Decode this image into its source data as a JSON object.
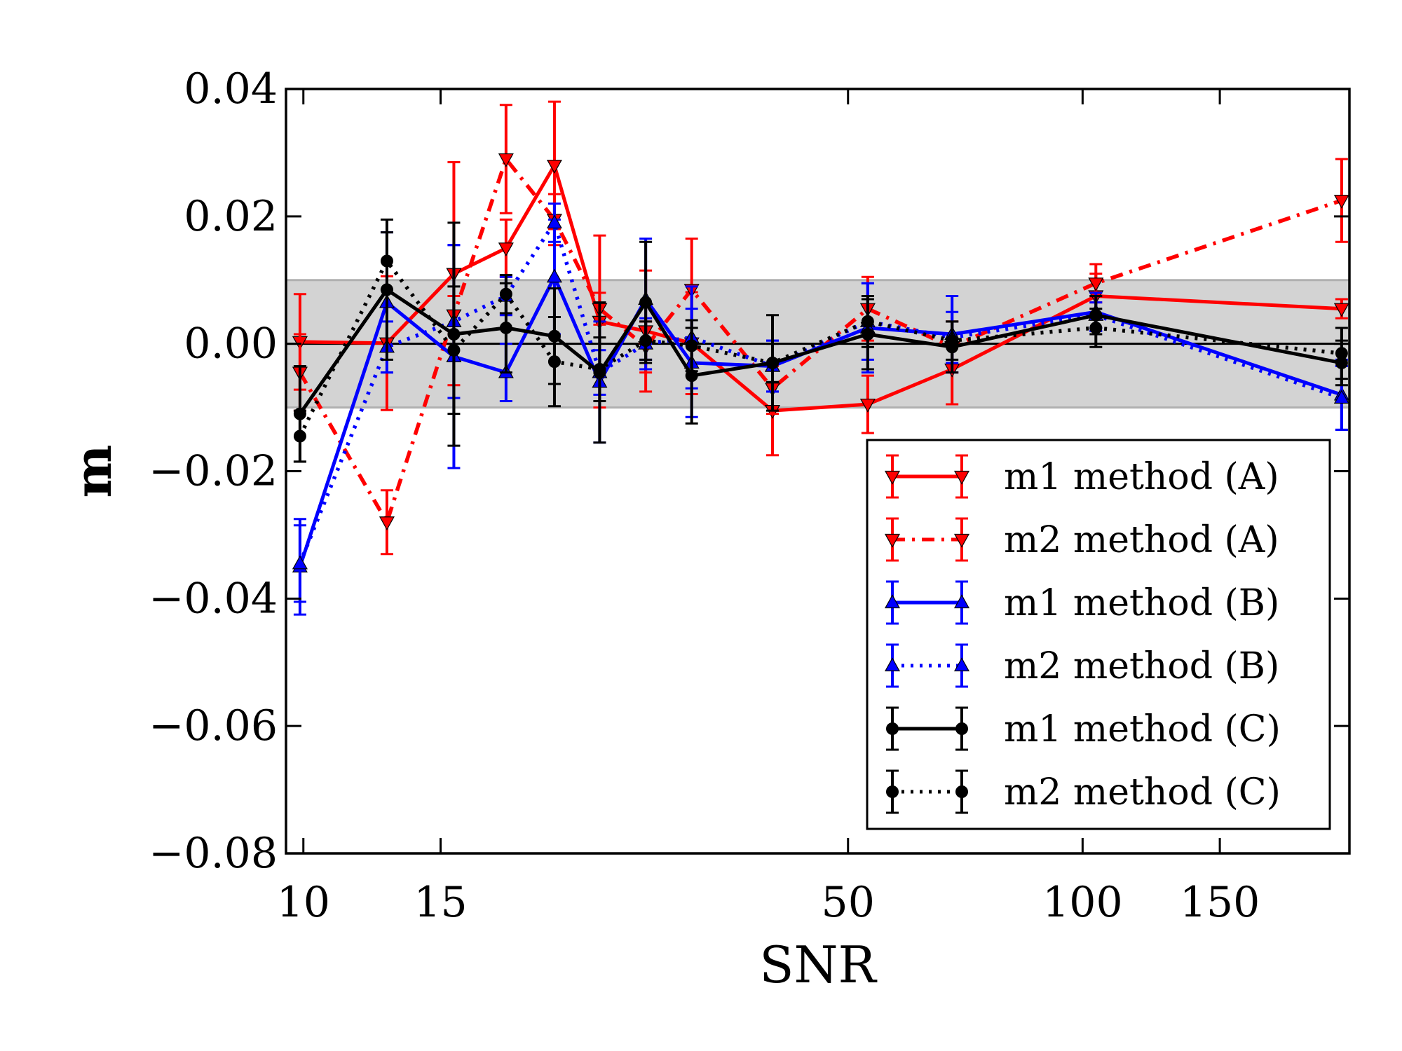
{
  "chart_data": {
    "type": "line",
    "title": "",
    "xlabel": "SNR",
    "ylabel": "m",
    "x_scale": "log",
    "xlim": [
      9.5,
      220
    ],
    "ylim": [
      -0.08,
      0.04
    ],
    "x_ticks": [
      10,
      15,
      50,
      100,
      150
    ],
    "x_tick_labels": [
      "10",
      "15",
      "50",
      "100",
      "150"
    ],
    "y_ticks": [
      -0.08,
      -0.06,
      -0.04,
      -0.02,
      0.0,
      0.02,
      0.04
    ],
    "y_tick_labels": [
      "−0.08",
      "−0.06",
      "−0.04",
      "−0.02",
      "0.00",
      "0.02",
      "0.04"
    ],
    "shaded_band": [
      -0.01,
      0.01
    ],
    "reference_line": 0.0,
    "legend_position": "lower-right",
    "series": [
      {
        "name": "m1 method (A)",
        "color": "#ff0000",
        "style": "solid",
        "marker": "triangle-down",
        "x": [
          9.9,
          12.8,
          15.6,
          18.2,
          21.0,
          24.0,
          27.5,
          31.5,
          40.0,
          53.0,
          68.0,
          104.0,
          215.0
        ],
        "y": [
          0.0003,
          0.0001,
          0.011,
          0.015,
          0.028,
          0.0035,
          0.002,
          0.0001,
          -0.0105,
          -0.0095,
          -0.004,
          0.0075,
          0.0055
        ],
        "err": [
          0.0075,
          0.0105,
          0.0175,
          0.0045,
          0.01,
          0.0135,
          0.0095,
          0.008,
          0.007,
          0.0045,
          0.0055,
          0.0035,
          0.0015
        ]
      },
      {
        "name": "m2 method (A)",
        "color": "#ff0000",
        "style": "dashdot",
        "marker": "triangle-down",
        "x": [
          9.9,
          12.8,
          15.6,
          18.2,
          21.0,
          24.0,
          27.5,
          31.5,
          40.0,
          53.0,
          68.0,
          104.0,
          215.0
        ],
        "y": [
          -0.0045,
          -0.028,
          0.0045,
          0.029,
          0.0195,
          0.0055,
          -0.0005,
          0.0085,
          -0.007,
          0.0055,
          -0.0005,
          0.0095,
          0.0225
        ],
        "err": [
          0.006,
          0.005,
          0.003,
          0.0085,
          0.004,
          0.0025,
          0.004,
          0.008,
          0.004,
          0.005,
          0.004,
          0.003,
          0.0065
        ]
      },
      {
        "name": "m1 method (B)",
        "color": "#0000ff",
        "style": "solid",
        "marker": "triangle-up",
        "x": [
          9.9,
          12.8,
          15.6,
          18.2,
          21.0,
          24.0,
          27.5,
          31.5,
          40.0,
          53.0,
          68.0,
          104.0,
          215.0
        ],
        "y": [
          -0.035,
          0.0065,
          -0.002,
          -0.0045,
          0.0105,
          -0.006,
          0.007,
          -0.003,
          -0.0035,
          0.0025,
          0.0015,
          0.005,
          -0.008
        ],
        "err": [
          0.0075,
          0.011,
          0.0175,
          0.0045,
          0.009,
          0.0095,
          0.0095,
          0.0085,
          0.004,
          0.007,
          0.006,
          0.003,
          0.0055
        ]
      },
      {
        "name": "m2 method (B)",
        "color": "#0000ff",
        "style": "dotted",
        "marker": "triangle-up",
        "x": [
          9.9,
          12.8,
          15.6,
          18.2,
          21.0,
          24.0,
          27.5,
          31.5,
          40.0,
          53.0,
          68.0,
          104.0,
          215.0
        ],
        "y": [
          -0.0345,
          -0.0005,
          0.0035,
          0.0075,
          0.019,
          -0.0045,
          0.0,
          0.001,
          -0.0035,
          0.0035,
          0.001,
          0.0045,
          -0.0085
        ],
        "err": [
          0.006,
          0.004,
          0.012,
          0.003,
          0.003,
          0.0035,
          0.004,
          0.008,
          0.004,
          0.006,
          0.004,
          0.002,
          0.005
        ]
      },
      {
        "name": "m1 method (C)",
        "color": "#000000",
        "style": "solid",
        "marker": "circle",
        "x": [
          9.9,
          12.8,
          15.6,
          18.2,
          21.0,
          24.0,
          27.5,
          31.5,
          40.0,
          53.0,
          68.0,
          104.0,
          215.0
        ],
        "y": [
          -0.011,
          0.0085,
          0.0015,
          0.0025,
          0.0012,
          -0.0045,
          0.0065,
          -0.005,
          -0.003,
          0.0015,
          -0.0005,
          0.0045,
          -0.003
        ],
        "err": [
          0.0075,
          0.011,
          0.0175,
          0.007,
          0.0075,
          0.011,
          0.0095,
          0.0075,
          0.0075,
          0.0055,
          0.004,
          0.003,
          0.0035
        ]
      },
      {
        "name": "m2 method (C)",
        "color": "#000000",
        "style": "dotted",
        "marker": "circle",
        "x": [
          9.9,
          12.8,
          15.6,
          18.2,
          21.0,
          24.0,
          27.5,
          31.5,
          40.0,
          53.0,
          68.0,
          104.0,
          215.0
        ],
        "y": [
          -0.0145,
          0.013,
          -0.001,
          0.0078,
          -0.0028,
          -0.004,
          0.0005,
          -0.0003,
          -0.003,
          0.0035,
          0.0005,
          0.0025,
          -0.0015
        ],
        "err": [
          0.004,
          0.0045,
          0.01,
          0.003,
          0.007,
          0.005,
          0.003,
          0.004,
          0.003,
          0.004,
          0.003,
          0.003,
          0.004
        ]
      }
    ]
  }
}
